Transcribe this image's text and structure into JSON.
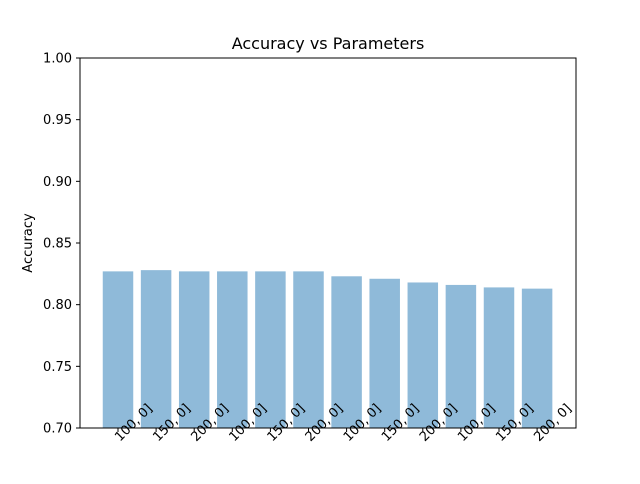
{
  "chart_data": {
    "type": "bar",
    "title": "Accuracy vs Parameters",
    "xlabel": "",
    "ylabel": "Accuracy",
    "ylim": [
      0.7,
      1.0
    ],
    "yticks": [
      "0.70",
      "0.75",
      "0.80",
      "0.85",
      "0.90",
      "0.95",
      "1.00"
    ],
    "categories": [
      "100, 0]",
      "150, 0]",
      "200, 0]",
      "100, 0]",
      "150, 0]",
      "200, 0]",
      "100, 0]",
      "150, 0]",
      "200, 0]",
      "100, 0]",
      "150, 0]",
      "200, 0]"
    ],
    "values": [
      0.827,
      0.828,
      0.827,
      0.827,
      0.827,
      0.827,
      0.823,
      0.821,
      0.818,
      0.816,
      0.814,
      0.813
    ],
    "bar_color": "#8fbad9",
    "grid": false,
    "legend": "none"
  }
}
